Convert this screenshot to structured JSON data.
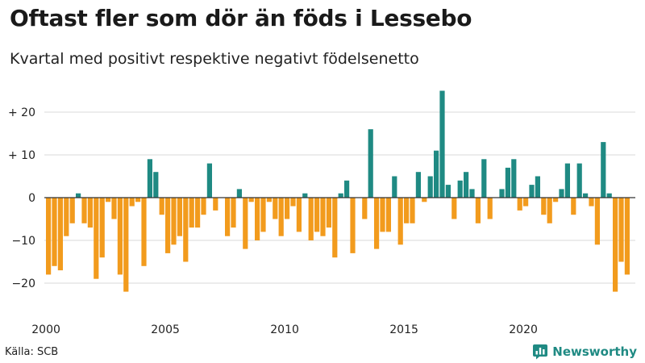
{
  "title": "Oftast fler som dör än föds i Lessebo",
  "subtitle": "Kvartal med positivt respektive negativt födelsenetto",
  "source": "Källa: SCB",
  "brand": "Newsworthy",
  "colors": {
    "positive": "#1f8a83",
    "negative": "#f29b1d",
    "brand": "#1f8a83",
    "grid": "#d9d9d9"
  },
  "chart_data": {
    "type": "bar",
    "title": "Oftast fler som dör än föds i Lessebo",
    "subtitle": "Kvartal med positivt respektive negativt födelsenetto",
    "xlabel": "",
    "ylabel": "",
    "ylim": [
      -25,
      25
    ],
    "yticks": [
      {
        "value": 20,
        "label": "+ 20"
      },
      {
        "value": 10,
        "label": "+ 10"
      },
      {
        "value": 0,
        "label": "0"
      },
      {
        "value": -10,
        "label": "−10"
      },
      {
        "value": -20,
        "label": "−20"
      }
    ],
    "xticks": [
      {
        "index": 0,
        "label": "2000"
      },
      {
        "index": 20,
        "label": "2005"
      },
      {
        "index": 40,
        "label": "2010"
      },
      {
        "index": 60,
        "label": "2015"
      },
      {
        "index": 80,
        "label": "2020"
      }
    ],
    "start": "2000 Q1",
    "frequency": "quarter",
    "values": [
      -18,
      -16,
      -17,
      -9,
      -6,
      1,
      -6,
      -7,
      -19,
      -14,
      -1,
      -5,
      -18,
      -22,
      -2,
      -1,
      -16,
      9,
      6,
      -4,
      -13,
      -11,
      -9,
      -15,
      -7,
      -7,
      -4,
      8,
      -3,
      0,
      -9,
      -7,
      2,
      -12,
      -1,
      -10,
      -8,
      -1,
      -5,
      -9,
      -5,
      -2,
      -8,
      1,
      -10,
      -8,
      -9,
      -7,
      -14,
      1,
      4,
      -13,
      0,
      -5,
      16,
      -12,
      -8,
      -8,
      5,
      -11,
      -6,
      -6,
      6,
      -1,
      5,
      11,
      25,
      3,
      -5,
      4,
      6,
      2,
      -6,
      9,
      -5,
      0,
      2,
      7,
      9,
      -3,
      -2,
      3,
      5,
      -4,
      -6,
      -1,
      2,
      8,
      -4,
      8,
      1,
      -2,
      -11,
      13,
      1,
      -22,
      -15,
      -18
    ]
  }
}
